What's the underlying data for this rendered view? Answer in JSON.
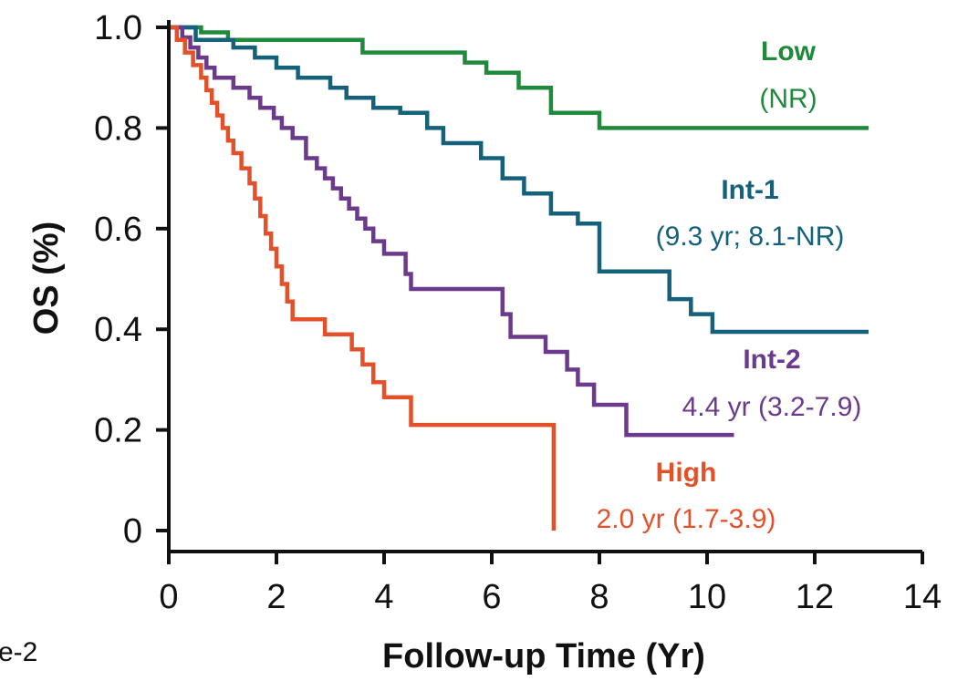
{
  "fragment_text": "e-2",
  "chart_data": {
    "type": "line",
    "step": true,
    "xlabel": "Follow-up Time (Yr)",
    "ylabel": "OS (%)",
    "xlim": [
      0,
      14
    ],
    "ylim": [
      0,
      1.0
    ],
    "x_ticks": [
      0,
      2,
      4,
      6,
      8,
      10,
      12,
      14
    ],
    "y_ticks": [
      0,
      0.2,
      0.4,
      0.6,
      0.8,
      1.0
    ],
    "y_tick_labels": [
      "0",
      "0.2",
      "0.4",
      "0.6",
      "0.8",
      "1.0"
    ],
    "grid": false,
    "series": [
      {
        "name": "Low",
        "median": "(NR)",
        "color": "#1f8a3c",
        "points": [
          [
            0,
            1.0
          ],
          [
            0.6,
            1.0
          ],
          [
            0.6,
            0.99
          ],
          [
            1.1,
            0.99
          ],
          [
            1.1,
            0.975
          ],
          [
            3.6,
            0.975
          ],
          [
            3.6,
            0.95
          ],
          [
            5.5,
            0.95
          ],
          [
            5.5,
            0.93
          ],
          [
            5.9,
            0.93
          ],
          [
            5.9,
            0.91
          ],
          [
            6.5,
            0.91
          ],
          [
            6.5,
            0.88
          ],
          [
            7.1,
            0.88
          ],
          [
            7.1,
            0.83
          ],
          [
            8.0,
            0.83
          ],
          [
            8.0,
            0.8
          ],
          [
            13.0,
            0.8
          ]
        ]
      },
      {
        "name": "Int-1",
        "median": "(9.3 yr; 8.1-NR)",
        "color": "#15607a",
        "points": [
          [
            0,
            1.0
          ],
          [
            0.5,
            1.0
          ],
          [
            0.5,
            0.975
          ],
          [
            1.2,
            0.975
          ],
          [
            1.2,
            0.96
          ],
          [
            1.6,
            0.96
          ],
          [
            1.6,
            0.94
          ],
          [
            2.0,
            0.94
          ],
          [
            2.0,
            0.92
          ],
          [
            2.4,
            0.92
          ],
          [
            2.4,
            0.9
          ],
          [
            3.0,
            0.9
          ],
          [
            3.0,
            0.88
          ],
          [
            3.3,
            0.88
          ],
          [
            3.3,
            0.86
          ],
          [
            3.8,
            0.86
          ],
          [
            3.8,
            0.84
          ],
          [
            4.3,
            0.84
          ],
          [
            4.3,
            0.83
          ],
          [
            4.8,
            0.83
          ],
          [
            4.8,
            0.8
          ],
          [
            5.1,
            0.8
          ],
          [
            5.1,
            0.77
          ],
          [
            5.8,
            0.77
          ],
          [
            5.8,
            0.74
          ],
          [
            6.2,
            0.74
          ],
          [
            6.2,
            0.7
          ],
          [
            6.6,
            0.7
          ],
          [
            6.6,
            0.67
          ],
          [
            7.1,
            0.67
          ],
          [
            7.1,
            0.63
          ],
          [
            7.6,
            0.63
          ],
          [
            7.6,
            0.61
          ],
          [
            8.0,
            0.61
          ],
          [
            8.0,
            0.515
          ],
          [
            9.3,
            0.515
          ],
          [
            9.3,
            0.46
          ],
          [
            9.7,
            0.46
          ],
          [
            9.7,
            0.43
          ],
          [
            10.1,
            0.43
          ],
          [
            10.1,
            0.395
          ],
          [
            13.0,
            0.395
          ]
        ]
      },
      {
        "name": "Int-2",
        "median": "4.4 yr (3.2-7.9)",
        "color": "#6b3a8c",
        "points": [
          [
            0,
            1.0
          ],
          [
            0.25,
            1.0
          ],
          [
            0.25,
            0.98
          ],
          [
            0.4,
            0.98
          ],
          [
            0.4,
            0.96
          ],
          [
            0.55,
            0.96
          ],
          [
            0.55,
            0.94
          ],
          [
            0.7,
            0.94
          ],
          [
            0.7,
            0.92
          ],
          [
            0.85,
            0.92
          ],
          [
            0.85,
            0.9
          ],
          [
            1.2,
            0.9
          ],
          [
            1.2,
            0.88
          ],
          [
            1.5,
            0.88
          ],
          [
            1.5,
            0.86
          ],
          [
            1.7,
            0.86
          ],
          [
            1.7,
            0.84
          ],
          [
            1.95,
            0.84
          ],
          [
            1.95,
            0.82
          ],
          [
            2.1,
            0.82
          ],
          [
            2.1,
            0.8
          ],
          [
            2.3,
            0.8
          ],
          [
            2.3,
            0.78
          ],
          [
            2.55,
            0.78
          ],
          [
            2.55,
            0.74
          ],
          [
            2.75,
            0.74
          ],
          [
            2.75,
            0.72
          ],
          [
            2.9,
            0.72
          ],
          [
            2.9,
            0.7
          ],
          [
            3.05,
            0.7
          ],
          [
            3.05,
            0.68
          ],
          [
            3.2,
            0.68
          ],
          [
            3.2,
            0.66
          ],
          [
            3.35,
            0.66
          ],
          [
            3.35,
            0.64
          ],
          [
            3.5,
            0.64
          ],
          [
            3.5,
            0.62
          ],
          [
            3.65,
            0.62
          ],
          [
            3.65,
            0.6
          ],
          [
            3.8,
            0.6
          ],
          [
            3.8,
            0.575
          ],
          [
            4.0,
            0.575
          ],
          [
            4.0,
            0.55
          ],
          [
            4.4,
            0.55
          ],
          [
            4.4,
            0.51
          ],
          [
            4.5,
            0.51
          ],
          [
            4.5,
            0.48
          ],
          [
            6.2,
            0.48
          ],
          [
            6.2,
            0.43
          ],
          [
            6.35,
            0.43
          ],
          [
            6.35,
            0.385
          ],
          [
            7.0,
            0.385
          ],
          [
            7.0,
            0.355
          ],
          [
            7.4,
            0.355
          ],
          [
            7.4,
            0.32
          ],
          [
            7.6,
            0.32
          ],
          [
            7.6,
            0.29
          ],
          [
            7.9,
            0.29
          ],
          [
            7.9,
            0.25
          ],
          [
            8.5,
            0.25
          ],
          [
            8.5,
            0.19
          ],
          [
            10.5,
            0.19
          ]
        ]
      },
      {
        "name": "High",
        "median": "2.0 yr (1.7-3.9)",
        "color": "#e2512a",
        "points": [
          [
            0,
            1.0
          ],
          [
            0.15,
            1.0
          ],
          [
            0.15,
            0.975
          ],
          [
            0.3,
            0.975
          ],
          [
            0.3,
            0.95
          ],
          [
            0.45,
            0.95
          ],
          [
            0.45,
            0.925
          ],
          [
            0.6,
            0.925
          ],
          [
            0.6,
            0.9
          ],
          [
            0.7,
            0.9
          ],
          [
            0.7,
            0.875
          ],
          [
            0.8,
            0.875
          ],
          [
            0.8,
            0.85
          ],
          [
            0.9,
            0.85
          ],
          [
            0.9,
            0.825
          ],
          [
            1.0,
            0.825
          ],
          [
            1.0,
            0.8
          ],
          [
            1.1,
            0.8
          ],
          [
            1.1,
            0.775
          ],
          [
            1.2,
            0.775
          ],
          [
            1.2,
            0.75
          ],
          [
            1.35,
            0.75
          ],
          [
            1.35,
            0.72
          ],
          [
            1.5,
            0.72
          ],
          [
            1.5,
            0.69
          ],
          [
            1.6,
            0.69
          ],
          [
            1.6,
            0.66
          ],
          [
            1.7,
            0.66
          ],
          [
            1.7,
            0.625
          ],
          [
            1.8,
            0.625
          ],
          [
            1.8,
            0.59
          ],
          [
            1.9,
            0.59
          ],
          [
            1.9,
            0.56
          ],
          [
            2.0,
            0.56
          ],
          [
            2.0,
            0.525
          ],
          [
            2.1,
            0.525
          ],
          [
            2.1,
            0.49
          ],
          [
            2.2,
            0.49
          ],
          [
            2.2,
            0.455
          ],
          [
            2.3,
            0.455
          ],
          [
            2.3,
            0.42
          ],
          [
            2.9,
            0.42
          ],
          [
            2.9,
            0.39
          ],
          [
            3.4,
            0.39
          ],
          [
            3.4,
            0.36
          ],
          [
            3.6,
            0.36
          ],
          [
            3.6,
            0.33
          ],
          [
            3.8,
            0.33
          ],
          [
            3.8,
            0.295
          ],
          [
            4.0,
            0.295
          ],
          [
            4.0,
            0.265
          ],
          [
            4.5,
            0.265
          ],
          [
            4.5,
            0.21
          ],
          [
            7.15,
            0.21
          ],
          [
            7.15,
            0.0
          ]
        ]
      }
    ]
  }
}
